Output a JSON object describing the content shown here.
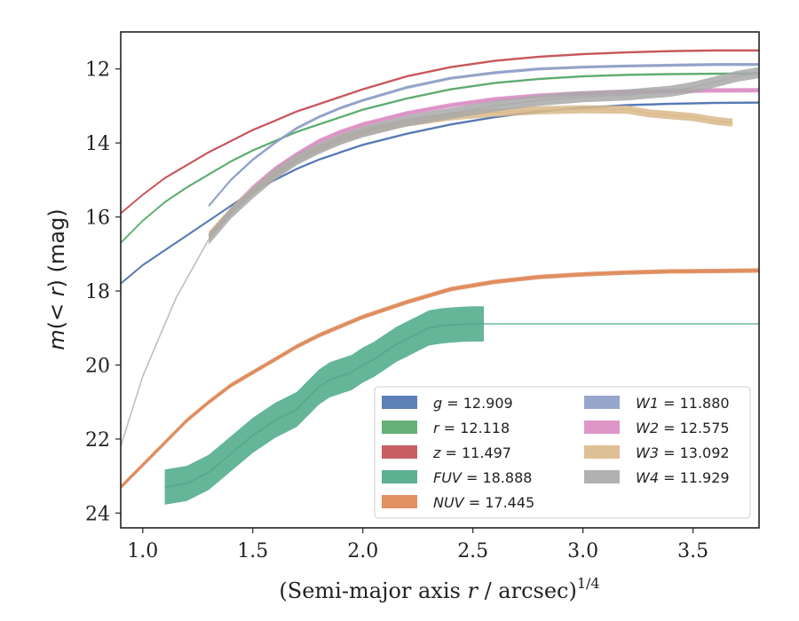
{
  "chart_data": {
    "type": "line",
    "xlabel": "(Semi-major axis r / arcsec)",
    "xlabel_italic_var": "r",
    "xlabel_exponent": "1/4",
    "ylabel": "m(< r) (mag)",
    "xlim": [
      0.9,
      3.8
    ],
    "ylim": [
      24.4,
      11.0
    ],
    "y_inverted": true,
    "x_ticks": [
      1.0,
      1.5,
      2.0,
      2.5,
      3.0,
      3.5
    ],
    "x_tick_labels": [
      "1.0",
      "1.5",
      "2.0",
      "2.5",
      "3.0",
      "3.5"
    ],
    "y_ticks": [
      12,
      14,
      16,
      18,
      20,
      22,
      24
    ],
    "y_tick_labels": [
      "12",
      "14",
      "16",
      "18",
      "20",
      "22",
      "24"
    ],
    "legend_position": "lower-right",
    "legend_columns": 2,
    "series": [
      {
        "name": "g",
        "legend": "g = 12.909",
        "color": "#4C72B0",
        "x": [
          0.9,
          1.0,
          1.1,
          1.2,
          1.3,
          1.4,
          1.5,
          1.6,
          1.7,
          1.8,
          1.9,
          2.0,
          2.2,
          2.4,
          2.6,
          2.8,
          3.0,
          3.2,
          3.4,
          3.6,
          3.8
        ],
        "y": [
          17.8,
          17.3,
          16.9,
          16.5,
          16.1,
          15.7,
          15.3,
          15.0,
          14.7,
          14.45,
          14.25,
          14.05,
          13.75,
          13.5,
          13.3,
          13.15,
          13.05,
          12.98,
          12.94,
          12.92,
          12.91
        ],
        "band": 0.06
      },
      {
        "name": "r",
        "legend": "r = 12.118",
        "color": "#55A868",
        "x": [
          0.9,
          1.0,
          1.1,
          1.2,
          1.3,
          1.4,
          1.5,
          1.6,
          1.7,
          1.8,
          1.9,
          2.0,
          2.2,
          2.4,
          2.6,
          2.8,
          3.0,
          3.2,
          3.4,
          3.6,
          3.8
        ],
        "y": [
          16.7,
          16.1,
          15.6,
          15.2,
          14.85,
          14.5,
          14.2,
          13.95,
          13.7,
          13.5,
          13.3,
          13.1,
          12.8,
          12.55,
          12.38,
          12.27,
          12.2,
          12.16,
          12.14,
          12.13,
          12.12
        ],
        "band": 0.06
      },
      {
        "name": "z",
        "legend": "z = 11.497",
        "color": "#C44E52",
        "x": [
          0.9,
          1.0,
          1.1,
          1.2,
          1.3,
          1.4,
          1.5,
          1.6,
          1.7,
          1.8,
          1.9,
          2.0,
          2.2,
          2.4,
          2.6,
          2.8,
          3.0,
          3.2,
          3.4,
          3.6,
          3.8
        ],
        "y": [
          15.9,
          15.4,
          14.95,
          14.6,
          14.25,
          13.95,
          13.65,
          13.4,
          13.15,
          12.95,
          12.75,
          12.55,
          12.2,
          11.95,
          11.78,
          11.67,
          11.6,
          11.55,
          11.52,
          11.5,
          11.5
        ],
        "band": 0.06
      },
      {
        "name": "FUV",
        "legend": "FUV = 18.888",
        "color": "#4AA887",
        "x": [
          1.1,
          1.2,
          1.3,
          1.4,
          1.5,
          1.6,
          1.7,
          1.75,
          1.8,
          1.85,
          1.9,
          1.95,
          2.0,
          2.05,
          2.1,
          2.15,
          2.2,
          2.25,
          2.3,
          2.35,
          2.4,
          2.45,
          2.5,
          2.55,
          3.0,
          3.8
        ],
        "y": [
          23.3,
          23.2,
          22.9,
          22.4,
          21.9,
          21.5,
          21.2,
          20.9,
          20.6,
          20.4,
          20.3,
          20.2,
          20.0,
          19.85,
          19.65,
          19.45,
          19.3,
          19.15,
          19.0,
          18.95,
          18.92,
          18.9,
          18.89,
          18.89,
          18.888,
          18.888
        ],
        "band": 0.95,
        "band_until_x": 2.55
      },
      {
        "name": "NUV",
        "legend": "NUV = 17.445",
        "color": "#DD8452",
        "x": [
          0.9,
          1.0,
          1.1,
          1.2,
          1.3,
          1.4,
          1.5,
          1.6,
          1.7,
          1.8,
          1.9,
          2.0,
          2.2,
          2.4,
          2.6,
          2.8,
          3.0,
          3.2,
          3.4,
          3.6,
          3.8
        ],
        "y": [
          23.3,
          22.7,
          22.1,
          21.5,
          21.0,
          20.55,
          20.2,
          19.85,
          19.5,
          19.2,
          18.95,
          18.7,
          18.3,
          17.95,
          17.75,
          17.62,
          17.55,
          17.5,
          17.47,
          17.46,
          17.445
        ],
        "band": 0.12
      },
      {
        "name": "W1",
        "legend": "W1 = 11.880",
        "color": "#8C9DC6",
        "x": [
          1.3,
          1.4,
          1.5,
          1.6,
          1.7,
          1.8,
          1.9,
          2.0,
          2.2,
          2.4,
          2.6,
          2.8,
          3.0,
          3.2,
          3.4,
          3.6,
          3.8
        ],
        "y": [
          15.7,
          15.0,
          14.45,
          14.0,
          13.6,
          13.3,
          13.05,
          12.85,
          12.5,
          12.25,
          12.1,
          12.0,
          11.95,
          11.92,
          11.9,
          11.88,
          11.88
        ],
        "band": 0.08
      },
      {
        "name": "W2",
        "legend": "W2 = 12.575",
        "color": "#DA8BC3",
        "x": [
          1.3,
          1.4,
          1.5,
          1.6,
          1.7,
          1.8,
          1.9,
          2.0,
          2.2,
          2.4,
          2.6,
          2.8,
          3.0,
          3.2,
          3.4,
          3.6,
          3.8
        ],
        "y": [
          16.5,
          15.8,
          15.2,
          14.7,
          14.3,
          13.95,
          13.7,
          13.5,
          13.2,
          12.98,
          12.82,
          12.72,
          12.66,
          12.62,
          12.6,
          12.58,
          12.575
        ],
        "band": 0.12
      },
      {
        "name": "W3",
        "legend": "W3 = 13.092",
        "color": "#D9B98A",
        "x": [
          1.3,
          1.4,
          1.5,
          1.6,
          1.7,
          1.8,
          1.9,
          2.0,
          2.2,
          2.4,
          2.6,
          2.8,
          3.0,
          3.2,
          3.3,
          3.4,
          3.5,
          3.6,
          3.68
        ],
        "y": [
          16.5,
          15.85,
          15.3,
          14.85,
          14.45,
          14.15,
          13.9,
          13.7,
          13.45,
          13.28,
          13.18,
          13.12,
          13.09,
          13.1,
          13.2,
          13.25,
          13.3,
          13.4,
          13.45
        ],
        "band": 0.22
      },
      {
        "name": "W4",
        "legend": "W4 = 11.929",
        "color": "#A9A9A9",
        "x": [
          0.9,
          1.0,
          1.15,
          1.3,
          1.4,
          1.5,
          1.6,
          1.7,
          1.8,
          1.9,
          2.0,
          2.2,
          2.4,
          2.6,
          2.8,
          3.0,
          3.2,
          3.4,
          3.5,
          3.6,
          3.7,
          3.8
        ],
        "y": [
          22.2,
          20.3,
          18.2,
          16.6,
          15.9,
          15.35,
          14.85,
          14.45,
          14.15,
          13.9,
          13.7,
          13.4,
          13.2,
          13.0,
          12.85,
          12.75,
          12.7,
          12.6,
          12.5,
          12.35,
          12.2,
          12.1
        ],
        "band": 0.3,
        "band_from_x": 1.3
      }
    ]
  }
}
